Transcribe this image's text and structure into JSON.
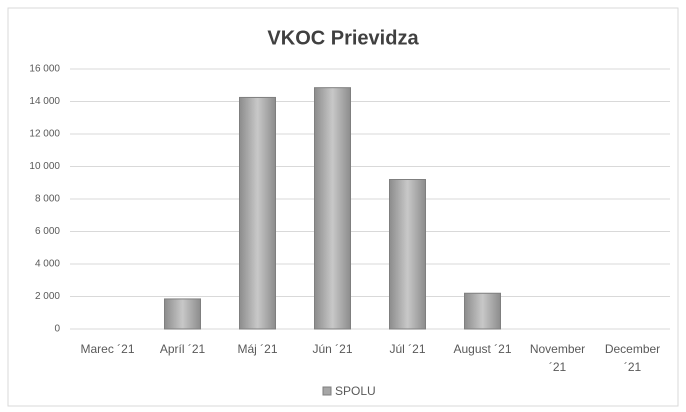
{
  "chart_data": {
    "type": "bar",
    "title": "VKOC Prievidza",
    "categories": [
      "Marec ´21",
      "Apríl ´21",
      "Máj ´21",
      "Jún ´21",
      "Júl ´21",
      "August ´21",
      "November ´21",
      "December ´21"
    ],
    "series": [
      {
        "name": "SPOLU",
        "color": "#a6a6a6",
        "values": [
          0,
          1850,
          14250,
          14850,
          9200,
          2200,
          0,
          0
        ]
      }
    ],
    "ylim": [
      0,
      16000
    ],
    "yticks": [
      0,
      {
        "value": 2000,
        "label": "2 000"
      },
      {
        "value": 4000,
        "label": "4 000"
      },
      {
        "value": 6000,
        "label": "6 000"
      },
      {
        "value": 8000,
        "label": "8 000"
      },
      {
        "value": 10000,
        "label": "10 000"
      },
      {
        "value": 12000,
        "label": "12 000"
      },
      {
        "value": 14000,
        "label": "14 000"
      },
      {
        "value": 16000,
        "label": "16 000"
      }
    ],
    "grid": true,
    "legend": "bottom"
  }
}
